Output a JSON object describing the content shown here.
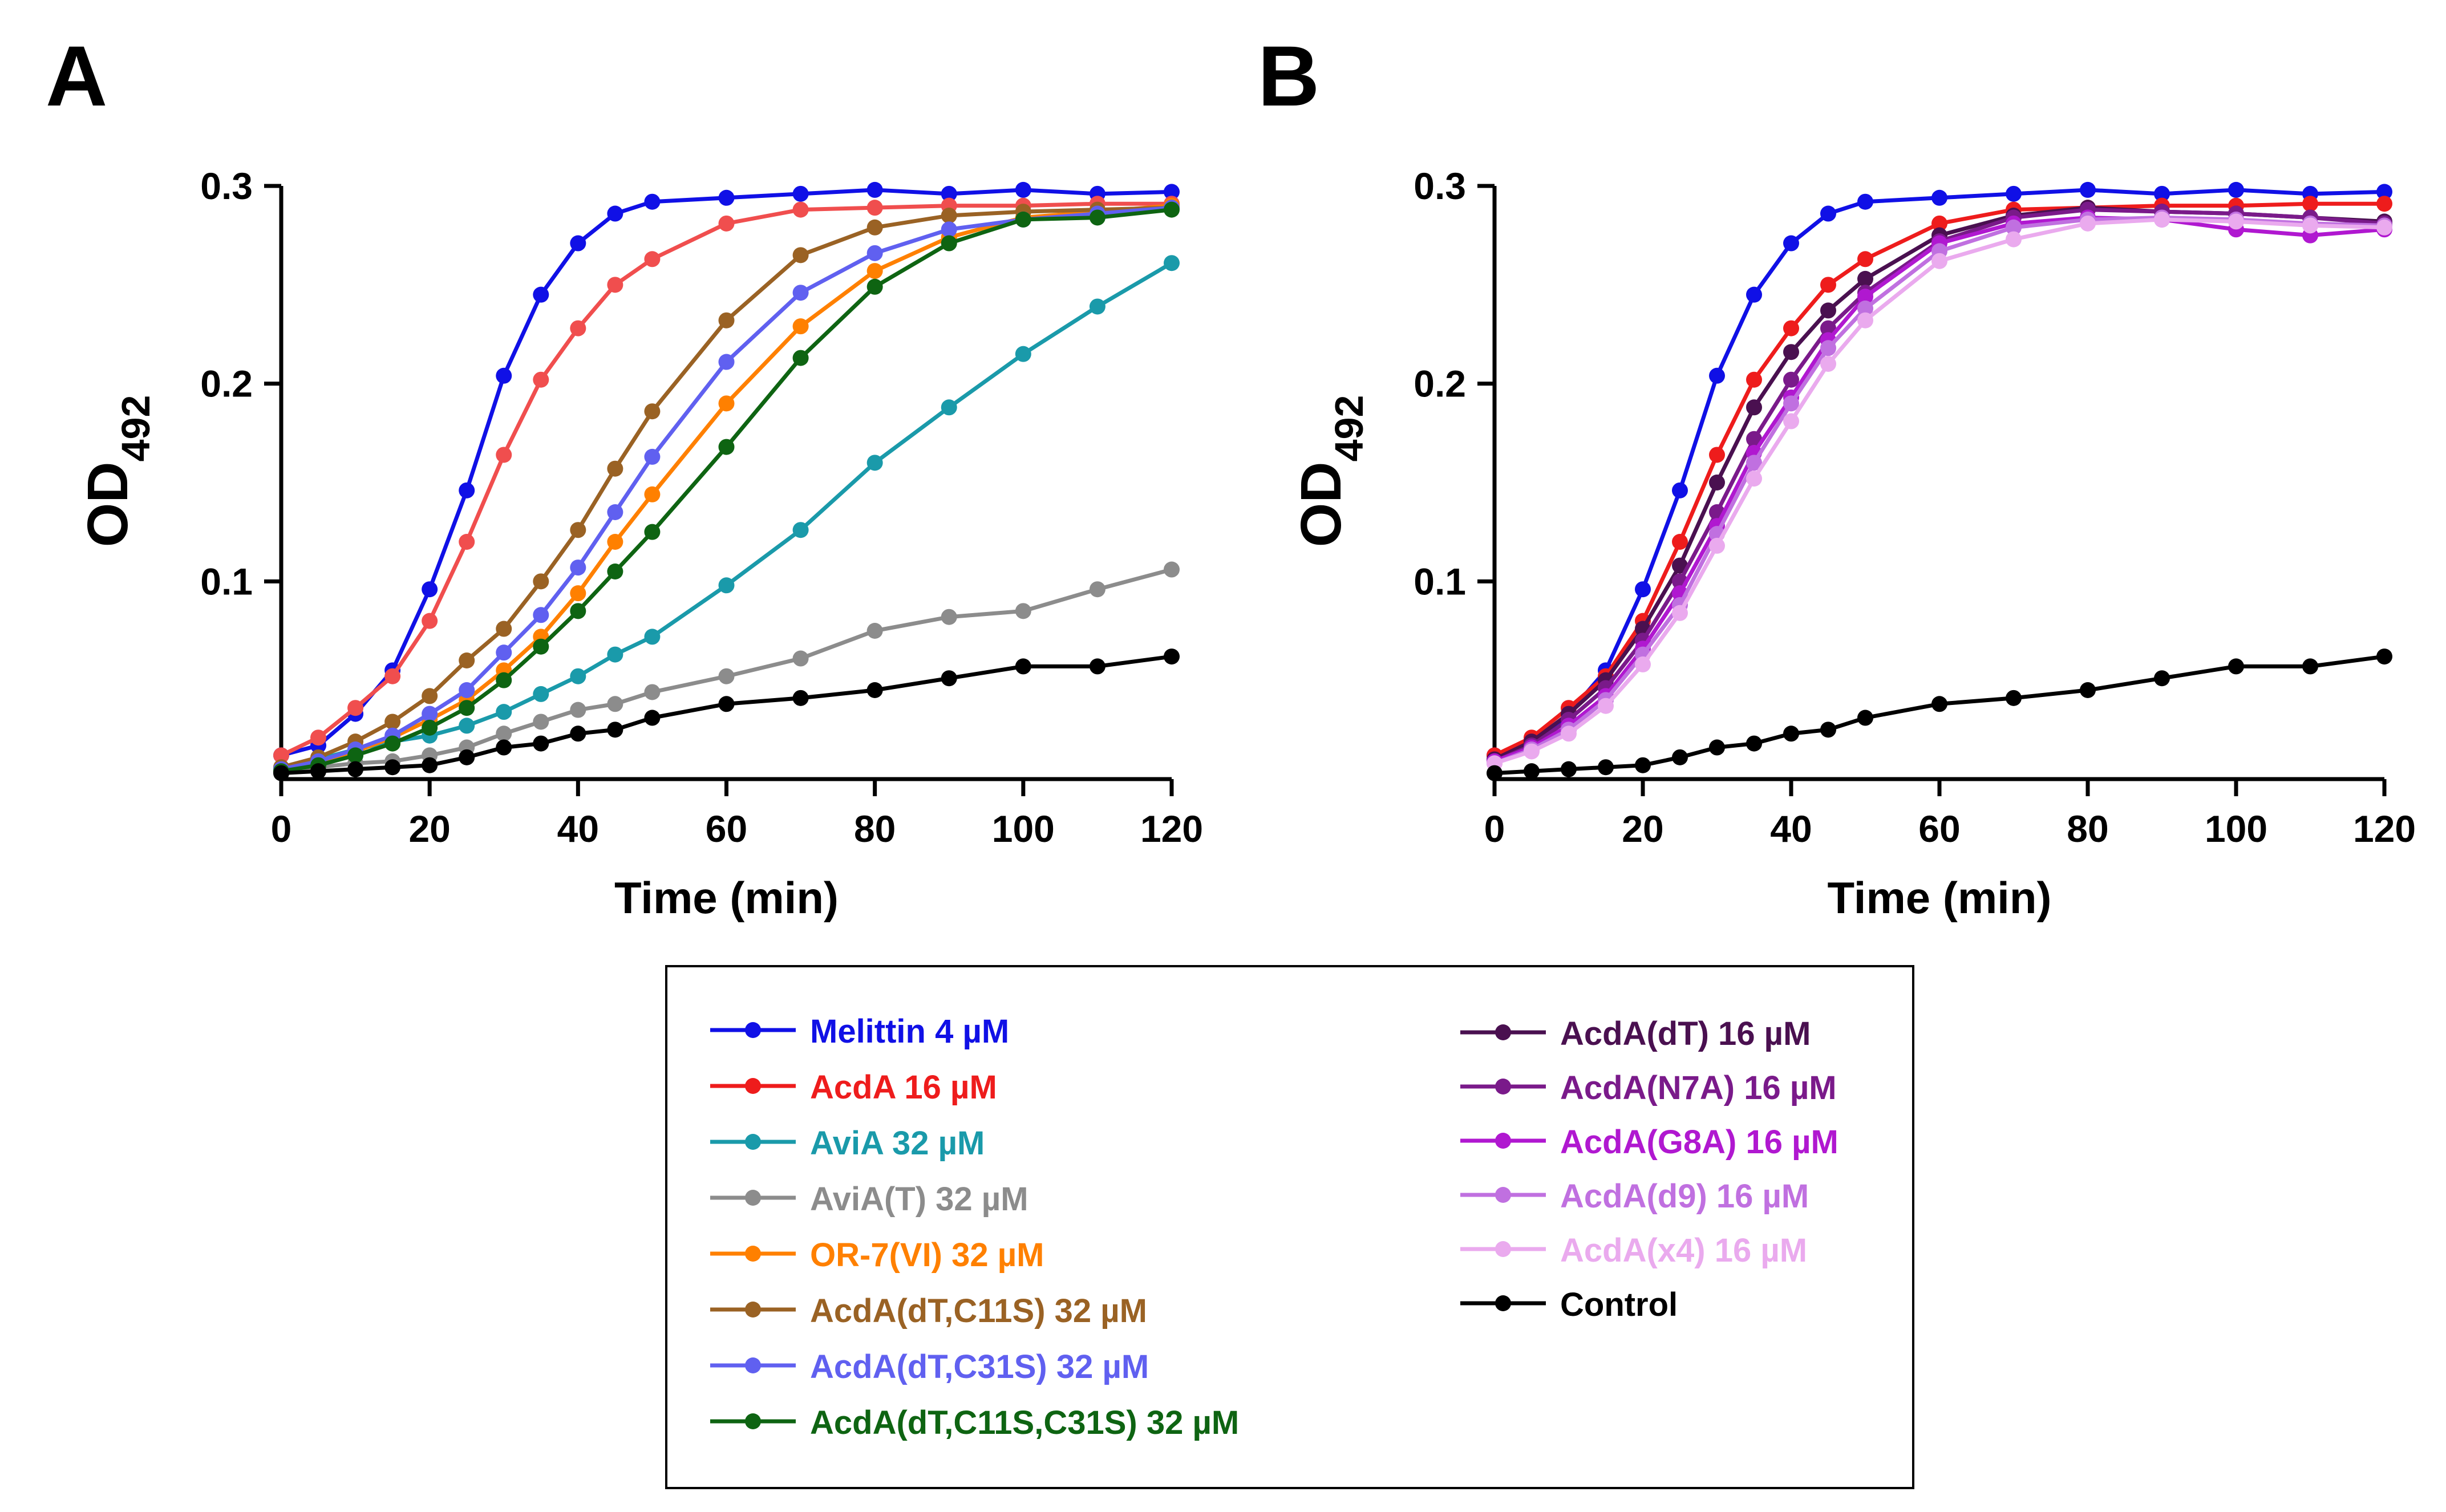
{
  "chart_data": [
    {
      "panel": "A",
      "type": "line",
      "xlabel": "Time (min)",
      "ylabel": "OD",
      "ylabel_sub": "492",
      "xlim": [
        0,
        120
      ],
      "ylim": [
        0,
        0.3
      ],
      "xticks": [
        "0",
        "20",
        "40",
        "60",
        "80",
        "100",
        "120"
      ],
      "yticks": [
        "0.1",
        "0.2",
        "0.3"
      ],
      "series": [
        {
          "name": "Melittin 4 µM",
          "color": "#1010e6",
          "x": [
            0,
            5,
            10,
            15,
            20,
            25,
            30,
            35,
            40,
            45,
            50,
            60,
            70,
            80,
            90,
            100,
            110,
            120
          ],
          "y": [
            0.012,
            0.017,
            0.033,
            0.055,
            0.096,
            0.146,
            0.204,
            0.245,
            0.271,
            0.286,
            0.292,
            0.294,
            0.296,
            0.298,
            0.296,
            0.298,
            0.296,
            0.297
          ]
        },
        {
          "name": "AcdA 16 µM",
          "color": "#f04e4e",
          "x": [
            0,
            5,
            10,
            15,
            20,
            25,
            30,
            35,
            40,
            45,
            50,
            60,
            70,
            80,
            90,
            100,
            110,
            120
          ],
          "y": [
            0.012,
            0.021,
            0.036,
            0.052,
            0.08,
            0.12,
            0.164,
            0.202,
            0.228,
            0.25,
            0.263,
            0.281,
            0.288,
            0.289,
            0.29,
            0.29,
            0.291,
            0.291
          ]
        },
        {
          "name": "AviA 32 µM",
          "color": "#1a9aaa",
          "x": [
            0,
            5,
            10,
            15,
            20,
            25,
            30,
            35,
            40,
            45,
            50,
            60,
            70,
            80,
            90,
            100,
            110,
            120
          ],
          "y": [
            0.004,
            0.01,
            0.015,
            0.019,
            0.022,
            0.027,
            0.034,
            0.043,
            0.052,
            0.063,
            0.072,
            0.098,
            0.126,
            0.16,
            0.188,
            0.215,
            0.239,
            0.261
          ]
        },
        {
          "name": "AviA(T) 32 µM",
          "color": "#8c8c8c",
          "x": [
            0,
            5,
            10,
            15,
            20,
            25,
            30,
            35,
            40,
            45,
            50,
            60,
            70,
            80,
            90,
            100,
            110,
            120
          ],
          "y": [
            0.004,
            0.006,
            0.008,
            0.009,
            0.012,
            0.016,
            0.023,
            0.029,
            0.035,
            0.038,
            0.044,
            0.052,
            0.061,
            0.075,
            0.082,
            0.085,
            0.096,
            0.106
          ]
        },
        {
          "name": "OR-7(VI) 32 µM",
          "color": "#ff8000",
          "x": [
            0,
            5,
            10,
            15,
            20,
            25,
            30,
            35,
            40,
            45,
            50,
            60,
            70,
            80,
            90,
            100,
            110,
            120
          ],
          "y": [
            0.005,
            0.008,
            0.014,
            0.021,
            0.03,
            0.04,
            0.055,
            0.072,
            0.094,
            0.12,
            0.144,
            0.19,
            0.229,
            0.257,
            0.274,
            0.284,
            0.287,
            0.29
          ]
        },
        {
          "name": "AcdA(dT,C11S) 32 µM",
          "color": "#9a6224",
          "x": [
            0,
            5,
            10,
            15,
            20,
            25,
            30,
            35,
            40,
            45,
            50,
            60,
            70,
            80,
            90,
            100,
            110,
            120
          ],
          "y": [
            0.006,
            0.011,
            0.019,
            0.029,
            0.042,
            0.06,
            0.076,
            0.1,
            0.126,
            0.157,
            0.186,
            0.232,
            0.265,
            0.279,
            0.285,
            0.287,
            0.288,
            0.289
          ]
        },
        {
          "name": "AcdA(dT,C31S) 32 µM",
          "color": "#6060f0",
          "x": [
            0,
            5,
            10,
            15,
            20,
            25,
            30,
            35,
            40,
            45,
            50,
            60,
            70,
            80,
            90,
            100,
            110,
            120
          ],
          "y": [
            0.005,
            0.009,
            0.015,
            0.022,
            0.033,
            0.045,
            0.064,
            0.083,
            0.107,
            0.135,
            0.163,
            0.211,
            0.246,
            0.266,
            0.278,
            0.283,
            0.286,
            0.289
          ]
        },
        {
          "name": "AcdA(dT,C11S,C31S) 32 µM",
          "color": "#0e6412",
          "x": [
            0,
            5,
            10,
            15,
            20,
            25,
            30,
            35,
            40,
            45,
            50,
            60,
            70,
            80,
            90,
            100,
            110,
            120
          ],
          "y": [
            0.004,
            0.007,
            0.012,
            0.018,
            0.026,
            0.036,
            0.05,
            0.067,
            0.085,
            0.105,
            0.125,
            0.168,
            0.213,
            0.249,
            0.271,
            0.283,
            0.284,
            0.288
          ]
        },
        {
          "name": "Control",
          "color": "#000000",
          "x": [
            0,
            5,
            10,
            15,
            20,
            25,
            30,
            35,
            40,
            45,
            50,
            60,
            70,
            80,
            90,
            100,
            110,
            120
          ],
          "y": [
            0.003,
            0.004,
            0.005,
            0.006,
            0.007,
            0.011,
            0.016,
            0.018,
            0.023,
            0.025,
            0.031,
            0.038,
            0.041,
            0.045,
            0.051,
            0.057,
            0.057,
            0.062
          ]
        }
      ]
    },
    {
      "panel": "B",
      "type": "line",
      "xlabel": "Time (min)",
      "ylabel": "OD",
      "ylabel_sub": "492",
      "xlim": [
        0,
        120
      ],
      "ylim": [
        0,
        0.3
      ],
      "xticks": [
        "0",
        "20",
        "40",
        "60",
        "80",
        "100",
        "120"
      ],
      "yticks": [
        "0.1",
        "0.2",
        "0.3"
      ],
      "series": [
        {
          "name": "Melittin 4 µM",
          "color": "#1010e6",
          "x": [
            0,
            5,
            10,
            15,
            20,
            25,
            30,
            35,
            40,
            45,
            50,
            60,
            70,
            80,
            90,
            100,
            110,
            120
          ],
          "y": [
            0.012,
            0.017,
            0.033,
            0.055,
            0.096,
            0.146,
            0.204,
            0.245,
            0.271,
            0.286,
            0.292,
            0.294,
            0.296,
            0.298,
            0.296,
            0.298,
            0.296,
            0.297
          ]
        },
        {
          "name": "AcdA 16 µM",
          "color": "#ee1c1c",
          "x": [
            0,
            5,
            10,
            15,
            20,
            25,
            30,
            35,
            40,
            45,
            50,
            60,
            70,
            80,
            90,
            100,
            110,
            120
          ],
          "y": [
            0.012,
            0.021,
            0.036,
            0.052,
            0.08,
            0.12,
            0.164,
            0.202,
            0.228,
            0.25,
            0.263,
            0.281,
            0.288,
            0.289,
            0.29,
            0.29,
            0.291,
            0.291
          ]
        },
        {
          "name": "AcdA(dT) 16 µM",
          "color": "#4a1050",
          "x": [
            0,
            5,
            10,
            15,
            20,
            25,
            30,
            35,
            40,
            45,
            50,
            60,
            70,
            80,
            90,
            100,
            110,
            120
          ],
          "y": [
            0.01,
            0.019,
            0.033,
            0.05,
            0.076,
            0.108,
            0.15,
            0.188,
            0.216,
            0.237,
            0.253,
            0.275,
            0.285,
            0.289,
            0.287,
            0.286,
            0.284,
            0.282
          ]
        },
        {
          "name": "AcdA(N7A) 16 µM",
          "color": "#7a1a8a",
          "x": [
            0,
            5,
            10,
            15,
            20,
            25,
            30,
            35,
            40,
            45,
            50,
            60,
            70,
            80,
            90,
            100,
            110,
            120
          ],
          "y": [
            0.009,
            0.017,
            0.03,
            0.046,
            0.07,
            0.1,
            0.135,
            0.172,
            0.202,
            0.228,
            0.246,
            0.272,
            0.284,
            0.288,
            0.287,
            0.286,
            0.284,
            0.281
          ]
        },
        {
          "name": "AcdA(G8A) 16 µM",
          "color": "#b018d0",
          "x": [
            0,
            5,
            10,
            15,
            20,
            25,
            30,
            35,
            40,
            45,
            50,
            60,
            70,
            80,
            90,
            100,
            110,
            120
          ],
          "y": [
            0.009,
            0.016,
            0.027,
            0.042,
            0.066,
            0.094,
            0.128,
            0.165,
            0.193,
            0.222,
            0.244,
            0.271,
            0.281,
            0.284,
            0.283,
            0.278,
            0.275,
            0.278
          ]
        },
        {
          "name": "AcdA(d9) 16 µM",
          "color": "#c070e0",
          "x": [
            0,
            5,
            10,
            15,
            20,
            25,
            30,
            35,
            40,
            45,
            50,
            60,
            70,
            80,
            90,
            100,
            110,
            120
          ],
          "y": [
            0.008,
            0.015,
            0.025,
            0.04,
            0.063,
            0.088,
            0.124,
            0.16,
            0.19,
            0.218,
            0.238,
            0.267,
            0.279,
            0.283,
            0.284,
            0.283,
            0.281,
            0.28
          ]
        },
        {
          "name": "AcdA(x4) 16 µM",
          "color": "#eaaaee",
          "x": [
            0,
            5,
            10,
            15,
            20,
            25,
            30,
            35,
            40,
            45,
            50,
            60,
            70,
            80,
            90,
            100,
            110,
            120
          ],
          "y": [
            0.008,
            0.014,
            0.023,
            0.037,
            0.058,
            0.084,
            0.118,
            0.152,
            0.181,
            0.21,
            0.232,
            0.262,
            0.273,
            0.281,
            0.283,
            0.282,
            0.28,
            0.279
          ]
        },
        {
          "name": "Control",
          "color": "#000000",
          "x": [
            0,
            5,
            10,
            15,
            20,
            25,
            30,
            35,
            40,
            45,
            50,
            60,
            70,
            80,
            90,
            100,
            110,
            120
          ],
          "y": [
            0.003,
            0.004,
            0.005,
            0.006,
            0.007,
            0.011,
            0.016,
            0.018,
            0.023,
            0.025,
            0.031,
            0.038,
            0.041,
            0.045,
            0.051,
            0.057,
            0.057,
            0.062
          ]
        }
      ]
    }
  ],
  "legend": {
    "left": [
      {
        "label": "Melittin 4 µM",
        "color": "#1010e6"
      },
      {
        "label": "AcdA 16 µM",
        "color": "#ee1c1c"
      },
      {
        "label": "AviA 32 µM",
        "color": "#1a9aaa"
      },
      {
        "label": "AviA(T) 32 µM",
        "color": "#8c8c8c"
      },
      {
        "label": "OR-7(VI) 32 µM",
        "color": "#ff8000"
      },
      {
        "label": "AcdA(dT,C11S) 32 µM",
        "color": "#9a6224"
      },
      {
        "label": "AcdA(dT,C31S) 32 µM",
        "color": "#6060f0"
      },
      {
        "label": "AcdA(dT,C11S,C31S) 32 µM",
        "color": "#0e6412"
      }
    ],
    "right": [
      {
        "label": "AcdA(dT) 16 µM",
        "color": "#4a1050"
      },
      {
        "label": "AcdA(N7A) 16 µM",
        "color": "#7a1a8a"
      },
      {
        "label": "AcdA(G8A) 16 µM",
        "color": "#b018d0"
      },
      {
        "label": "AcdA(d9) 16 µM",
        "color": "#c070e0"
      },
      {
        "label": "AcdA(x4) 16 µM",
        "color": "#eaaaee"
      },
      {
        "label": "Control",
        "color": "#000000"
      }
    ]
  }
}
